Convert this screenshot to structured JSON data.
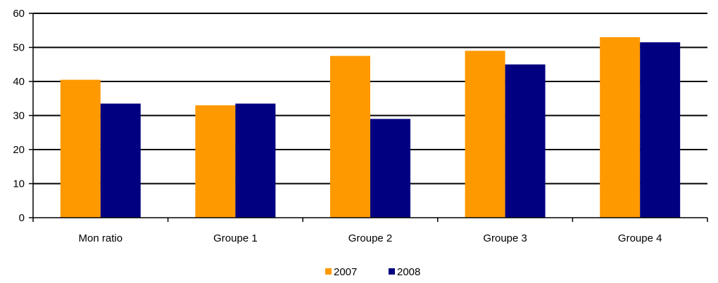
{
  "chart_data": {
    "type": "bar",
    "categories": [
      "Mon ratio",
      "Groupe 1",
      "Groupe 2",
      "Groupe 3",
      "Groupe 4"
    ],
    "series": [
      {
        "name": "2007",
        "color": "#ff9900",
        "values": [
          40.5,
          33.0,
          47.5,
          49.0,
          53.0
        ]
      },
      {
        "name": "2008",
        "color": "#000080",
        "values": [
          33.5,
          33.5,
          29.0,
          45.0,
          51.5
        ]
      }
    ],
    "ylim": [
      0,
      60
    ],
    "yticks": [
      0,
      10,
      20,
      30,
      40,
      50,
      60
    ],
    "grid": true,
    "legend": "bottom-center",
    "title": "",
    "xlabel": "",
    "ylabel": ""
  }
}
